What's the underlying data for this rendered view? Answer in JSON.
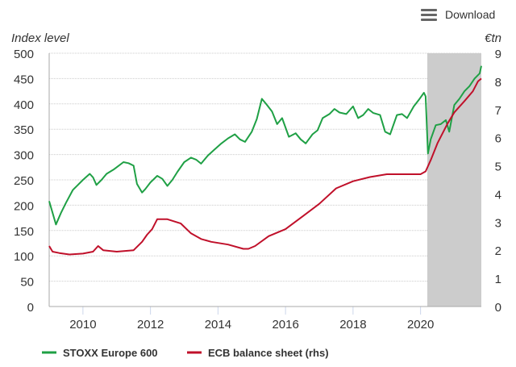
{
  "toolbar": {
    "download_label": "Download",
    "menu_icon": "hamburger-icon"
  },
  "chart_data": {
    "type": "line",
    "ylabel": "Index level",
    "y2label": "€tn",
    "ylim": [
      0,
      500
    ],
    "y2lim": [
      0,
      9
    ],
    "xlim": [
      2009.0,
      2021.8
    ],
    "yticks": [
      "0",
      "50",
      "100",
      "150",
      "200",
      "250",
      "300",
      "350",
      "400",
      "450",
      "500"
    ],
    "y2ticks": [
      "0",
      "1",
      "2",
      "3",
      "4",
      "5",
      "6",
      "7",
      "8",
      "9"
    ],
    "xticks": [
      "2010",
      "2012",
      "2014",
      "2016",
      "2018",
      "2020"
    ],
    "shaded_region": [
      2020.2,
      2021.8
    ],
    "grid": true,
    "legend_placement": "bottom-left",
    "series": [
      {
        "name": "STOXX Europe 600",
        "axis": "left",
        "color": "#1fa045",
        "x": [
          2009.0,
          2009.1,
          2009.2,
          2009.35,
          2009.5,
          2009.7,
          2009.85,
          2010.0,
          2010.2,
          2010.3,
          2010.4,
          2010.55,
          2010.7,
          2010.9,
          2011.0,
          2011.2,
          2011.35,
          2011.5,
          2011.6,
          2011.75,
          2011.85,
          2012.0,
          2012.2,
          2012.35,
          2012.5,
          2012.65,
          2012.8,
          2013.0,
          2013.2,
          2013.35,
          2013.5,
          2013.7,
          2013.9,
          2014.1,
          2014.3,
          2014.5,
          2014.65,
          2014.8,
          2015.0,
          2015.15,
          2015.3,
          2015.45,
          2015.6,
          2015.75,
          2015.9,
          2016.1,
          2016.3,
          2016.45,
          2016.6,
          2016.8,
          2016.95,
          2017.1,
          2017.3,
          2017.45,
          2017.6,
          2017.8,
          2018.0,
          2018.15,
          2018.3,
          2018.45,
          2018.6,
          2018.8,
          2018.95,
          2019.1,
          2019.3,
          2019.45,
          2019.6,
          2019.8,
          2019.95,
          2020.1,
          2020.15,
          2020.22,
          2020.3,
          2020.45,
          2020.6,
          2020.75,
          2020.85,
          2021.0,
          2021.15,
          2021.3,
          2021.45,
          2021.6,
          2021.75,
          2021.8
        ],
        "values": [
          208,
          185,
          162,
          185,
          205,
          230,
          240,
          250,
          262,
          255,
          240,
          250,
          262,
          270,
          275,
          285,
          283,
          278,
          242,
          225,
          232,
          245,
          258,
          252,
          238,
          250,
          266,
          285,
          294,
          290,
          282,
          298,
          310,
          322,
          332,
          340,
          330,
          325,
          345,
          370,
          410,
          398,
          385,
          360,
          372,
          335,
          342,
          330,
          322,
          340,
          348,
          372,
          380,
          390,
          383,
          380,
          395,
          372,
          378,
          390,
          382,
          378,
          345,
          340,
          378,
          380,
          372,
          395,
          408,
          422,
          415,
          302,
          330,
          358,
          360,
          368,
          345,
          398,
          410,
          425,
          435,
          450,
          460,
          475
        ]
      },
      {
        "name": "ECB balance sheet (rhs)",
        "axis": "right",
        "color": "#c0102a",
        "x": [
          2009.0,
          2009.1,
          2009.3,
          2009.6,
          2010.0,
          2010.3,
          2010.45,
          2010.6,
          2011.0,
          2011.5,
          2011.75,
          2011.9,
          2012.05,
          2012.2,
          2012.5,
          2012.9,
          2013.2,
          2013.5,
          2013.8,
          2014.3,
          2014.75,
          2014.9,
          2015.1,
          2015.5,
          2016.0,
          2016.5,
          2017.0,
          2017.5,
          2018.0,
          2018.5,
          2019.0,
          2019.5,
          2020.0,
          2020.15,
          2020.3,
          2020.5,
          2020.8,
          2021.0,
          2021.3,
          2021.55,
          2021.7,
          2021.8
        ],
        "values": [
          2.15,
          1.95,
          1.9,
          1.85,
          1.88,
          1.95,
          2.15,
          2.0,
          1.95,
          2.0,
          2.3,
          2.55,
          2.75,
          3.1,
          3.1,
          2.95,
          2.6,
          2.4,
          2.3,
          2.2,
          2.05,
          2.05,
          2.15,
          2.5,
          2.75,
          3.2,
          3.65,
          4.2,
          4.45,
          4.6,
          4.7,
          4.7,
          4.7,
          4.8,
          5.2,
          5.8,
          6.5,
          6.9,
          7.3,
          7.65,
          8.0,
          8.1
        ]
      }
    ]
  }
}
